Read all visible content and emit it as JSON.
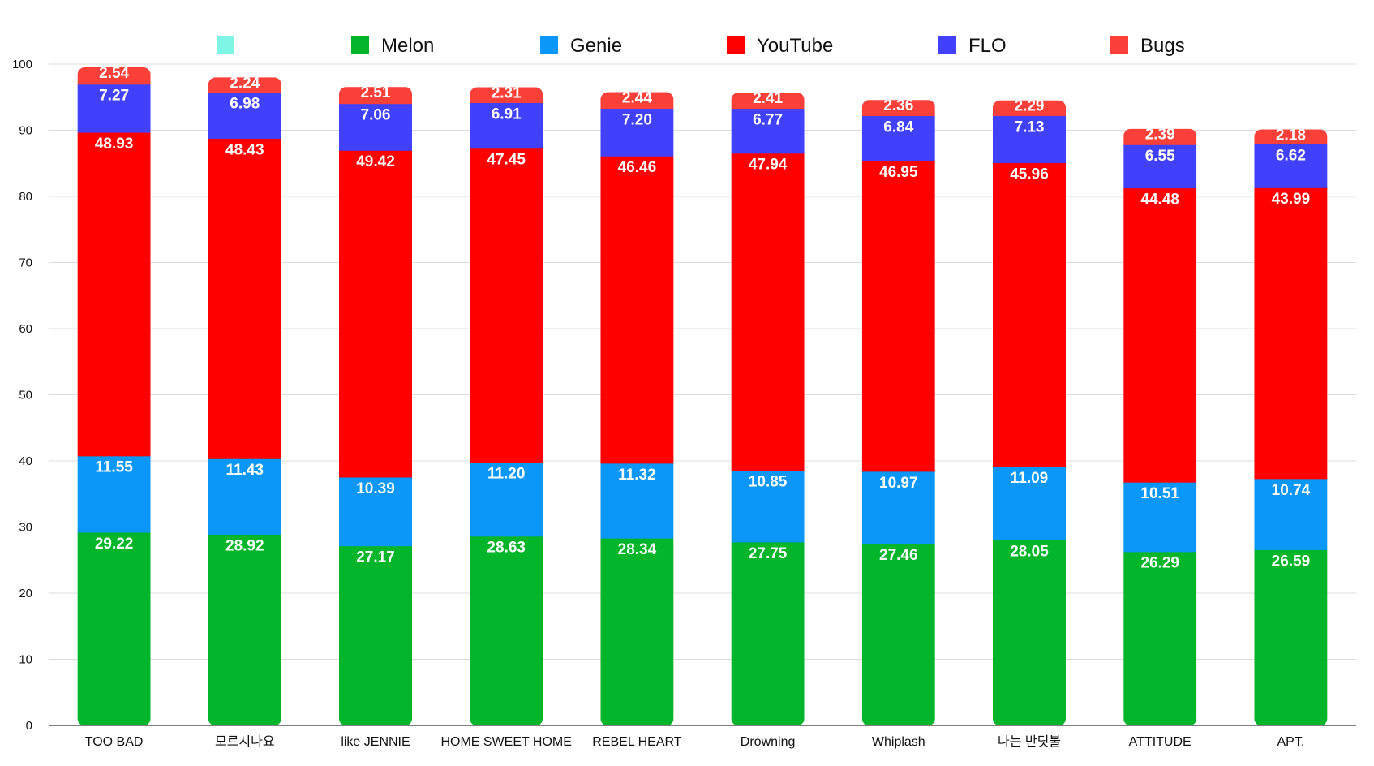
{
  "chart_data": {
    "type": "bar",
    "stacked": true,
    "title": "",
    "xlabel": "",
    "ylabel": "",
    "ylim": [
      0,
      100
    ],
    "yticks": [
      0,
      10,
      20,
      30,
      40,
      50,
      60,
      70,
      80,
      90,
      100
    ],
    "grid": true,
    "legend_position": "top",
    "legend_extra_swatch": {
      "name": "",
      "color": "#7ff5e6"
    },
    "categories": [
      "TOO BAD",
      "모르시나요",
      "like JENNIE",
      "HOME SWEET HOME",
      "REBEL HEART",
      "Drowning",
      "Whiplash",
      "나는 반딧불",
      "ATTITUDE",
      "APT."
    ],
    "series": [
      {
        "name": "Melon",
        "color": "#03b52a",
        "values": [
          29.22,
          28.92,
          27.17,
          28.63,
          28.34,
          27.75,
          27.46,
          28.05,
          26.29,
          26.59
        ]
      },
      {
        "name": "Genie",
        "color": "#0a97f7",
        "values": [
          11.55,
          11.43,
          10.39,
          11.2,
          11.32,
          10.85,
          10.97,
          11.09,
          10.51,
          10.74
        ]
      },
      {
        "name": "YouTube",
        "color": "#fe0000",
        "values": [
          48.93,
          48.43,
          49.42,
          47.45,
          46.46,
          47.94,
          46.95,
          45.96,
          44.48,
          43.99
        ]
      },
      {
        "name": "FLO",
        "color": "#4141fb",
        "values": [
          7.27,
          6.98,
          7.06,
          6.91,
          7.2,
          6.77,
          6.84,
          7.13,
          6.55,
          6.62
        ]
      },
      {
        "name": "Bugs",
        "color": "#fb403a",
        "values": [
          2.54,
          2.24,
          2.51,
          2.31,
          2.44,
          2.41,
          2.36,
          2.29,
          2.39,
          2.18
        ]
      }
    ]
  }
}
